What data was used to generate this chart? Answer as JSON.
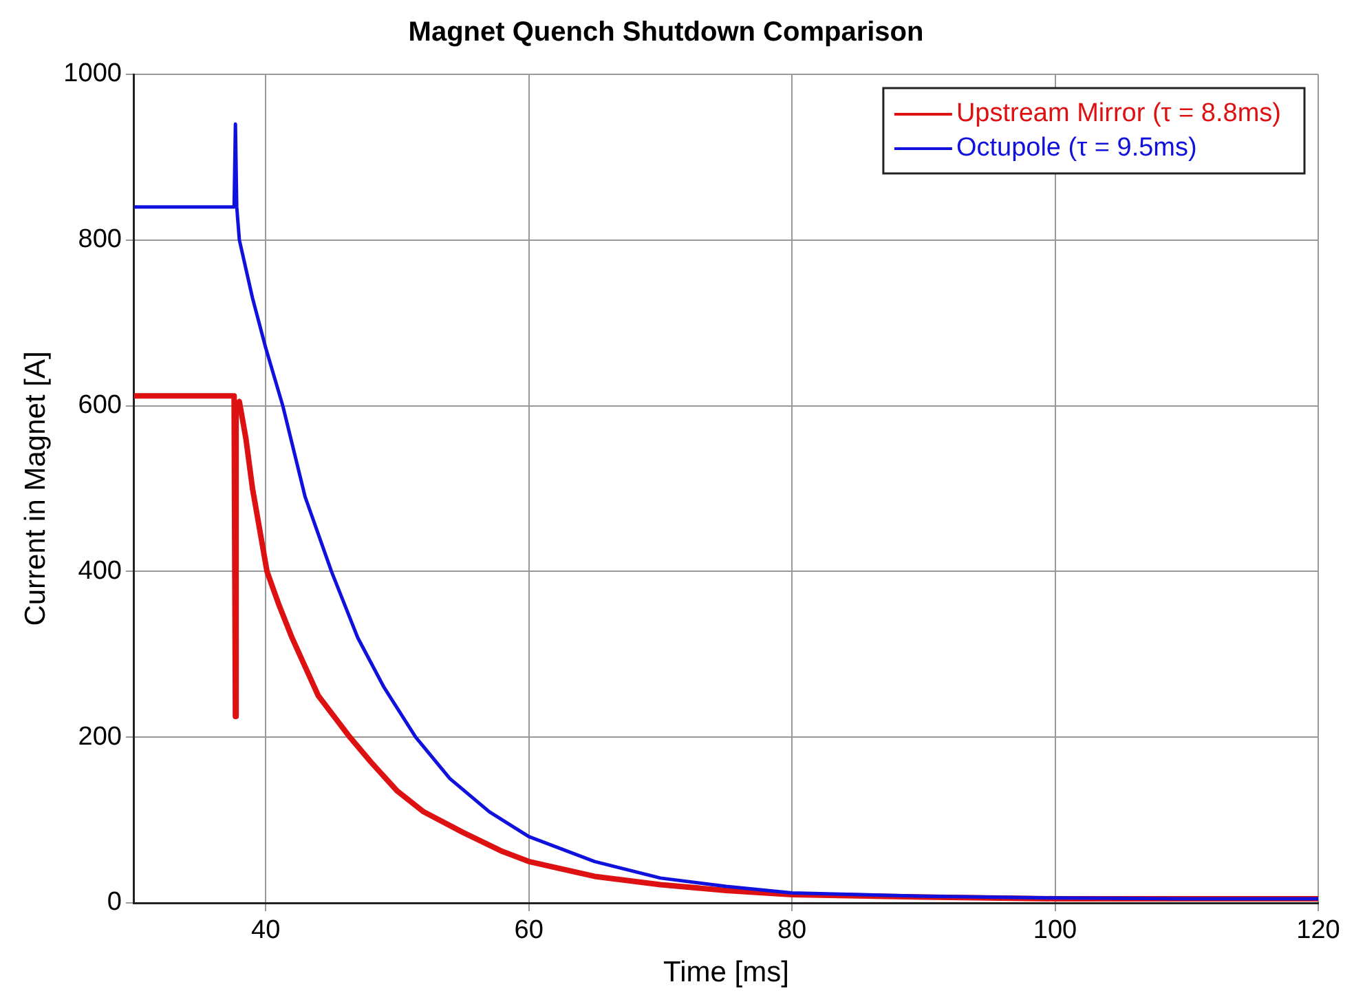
{
  "chart_data": {
    "type": "line",
    "title": "Magnet Quench Shutdown Comparison",
    "xlabel": "Time [ms]",
    "ylabel": "Current in Magnet [A]",
    "xlim": [
      30,
      120
    ],
    "xticks": [
      40,
      60,
      80,
      100,
      120
    ],
    "ylim": [
      0,
      1000
    ],
    "yticks": [
      0,
      200,
      400,
      600,
      800,
      1000
    ],
    "grid": true,
    "legend": "top right",
    "marker": "none",
    "line_style": "solid",
    "series": [
      {
        "name": "Upstream Mirror (τ = 8.8ms)",
        "color": "#dd1111",
        "x": [
          30,
          34,
          37.6,
          37.7,
          37.75,
          38.0,
          38.5,
          39,
          40.1,
          41,
          42,
          43,
          44,
          46.4,
          48,
          50,
          52,
          55,
          58,
          60,
          65,
          70,
          75,
          80,
          90,
          100,
          110,
          120
        ],
        "values": [
          612,
          612,
          612,
          225,
          600,
          605,
          560,
          500,
          400,
          360,
          320,
          285,
          250,
          200,
          170,
          135,
          110,
          85,
          62,
          50,
          32,
          22,
          15,
          10,
          7,
          5,
          5,
          5
        ]
      },
      {
        "name": "Octupole (τ = 9.5ms)",
        "color": "#1111dd",
        "x": [
          30,
          34,
          37.6,
          37.7,
          37.8,
          38.0,
          39,
          40,
          41.3,
          43,
          45,
          47,
          49,
          51.4,
          54,
          57,
          60,
          65,
          70,
          75,
          80,
          90,
          100,
          110,
          120
        ],
        "values": [
          840,
          840,
          840,
          940,
          840,
          800,
          730,
          670,
          600,
          490,
          400,
          320,
          260,
          200,
          150,
          110,
          80,
          50,
          30,
          20,
          12,
          8,
          6,
          5,
          5
        ]
      }
    ]
  }
}
